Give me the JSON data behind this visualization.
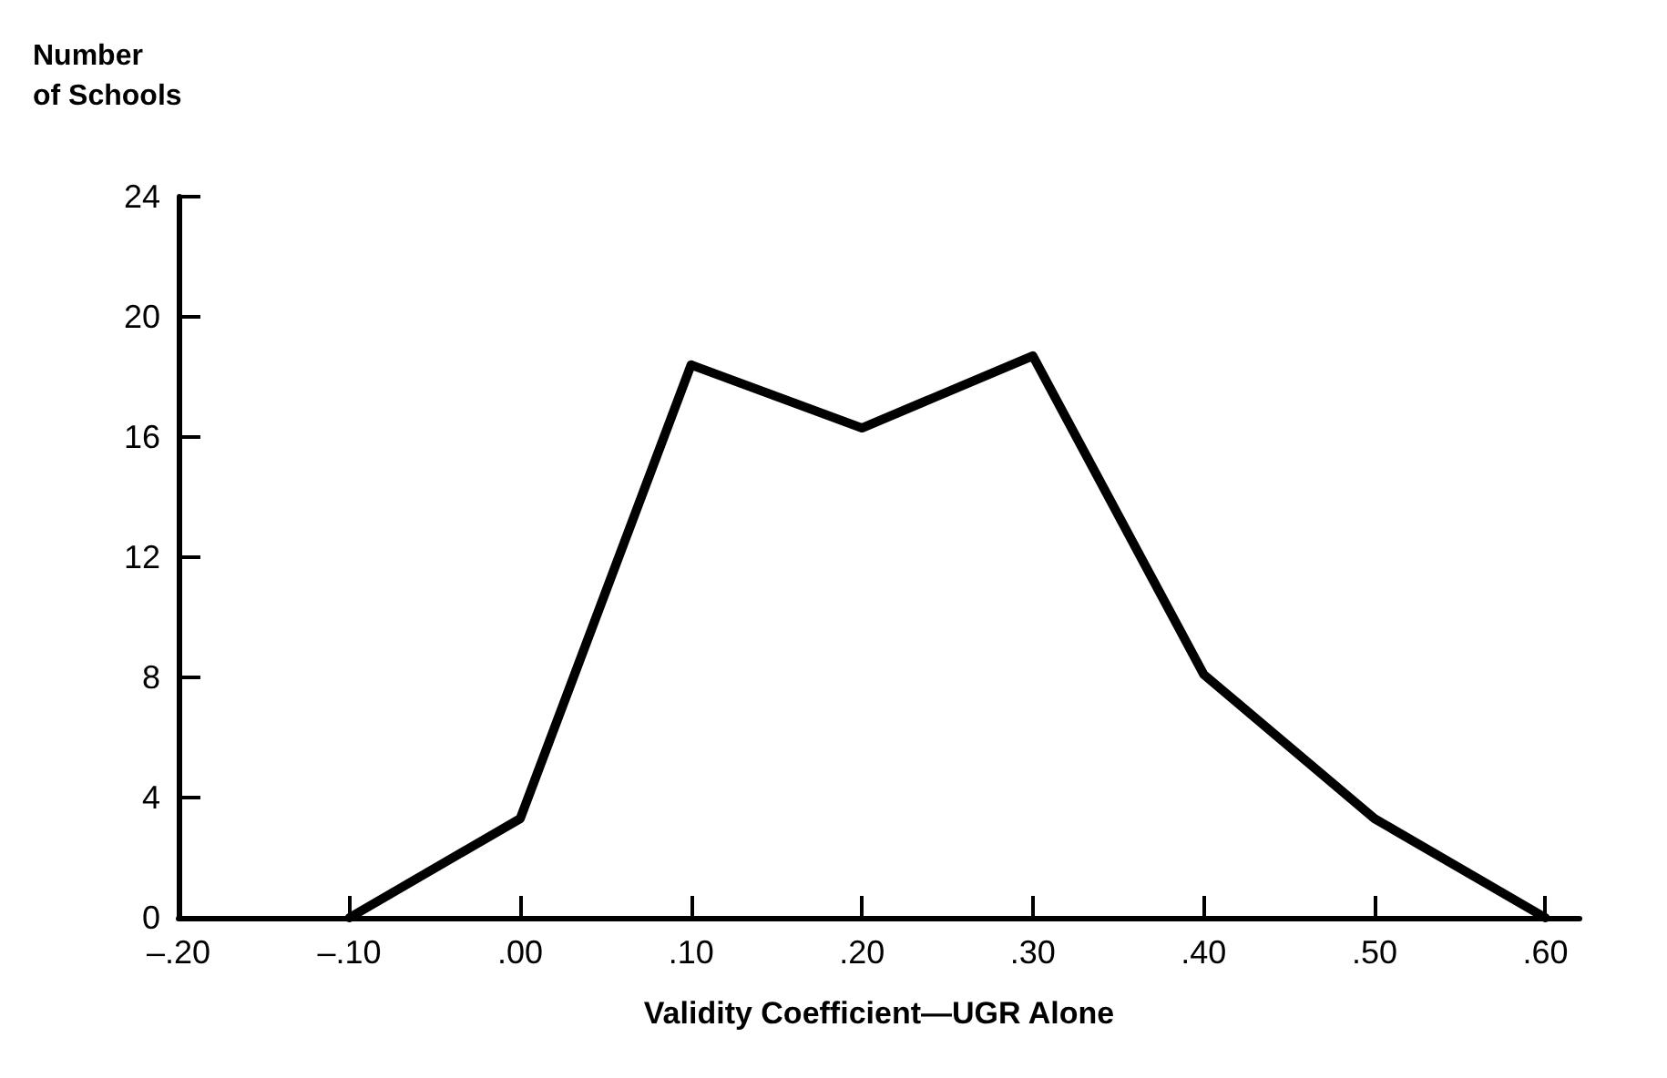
{
  "chart_data": {
    "type": "line",
    "xlabel": "Validity Coefficient—UGR Alone",
    "ylabel": "Number\nof Schools",
    "x": [
      -0.1,
      0,
      0.1,
      0.2,
      0.3,
      0.4,
      0.5,
      0.6
    ],
    "series": [
      {
        "color": "#000000",
        "values": [
          0,
          3.3,
          18.4,
          16.3,
          18.7,
          8.1,
          3.3,
          0
        ]
      }
    ],
    "xlim": [
      -0.2,
      0.62
    ],
    "xticks": [
      {
        "value": -0.2,
        "label": "–.20"
      },
      {
        "value": -0.1,
        "label": "–.10"
      },
      {
        "value": 0,
        "label": ".00"
      },
      {
        "value": 0.1,
        "label": ".10"
      },
      {
        "value": 0.2,
        "label": ".20"
      },
      {
        "value": 0.3,
        "label": ".30"
      },
      {
        "value": 0.4,
        "label": ".40"
      },
      {
        "value": 0.5,
        "label": ".50"
      },
      {
        "value": 0.6,
        "label": ".60"
      }
    ],
    "ylim": [
      0,
      24
    ],
    "yticks": [
      0,
      4,
      8,
      12,
      16,
      20,
      24
    ],
    "grid": false,
    "marker": "none",
    "line_style": "solid"
  }
}
